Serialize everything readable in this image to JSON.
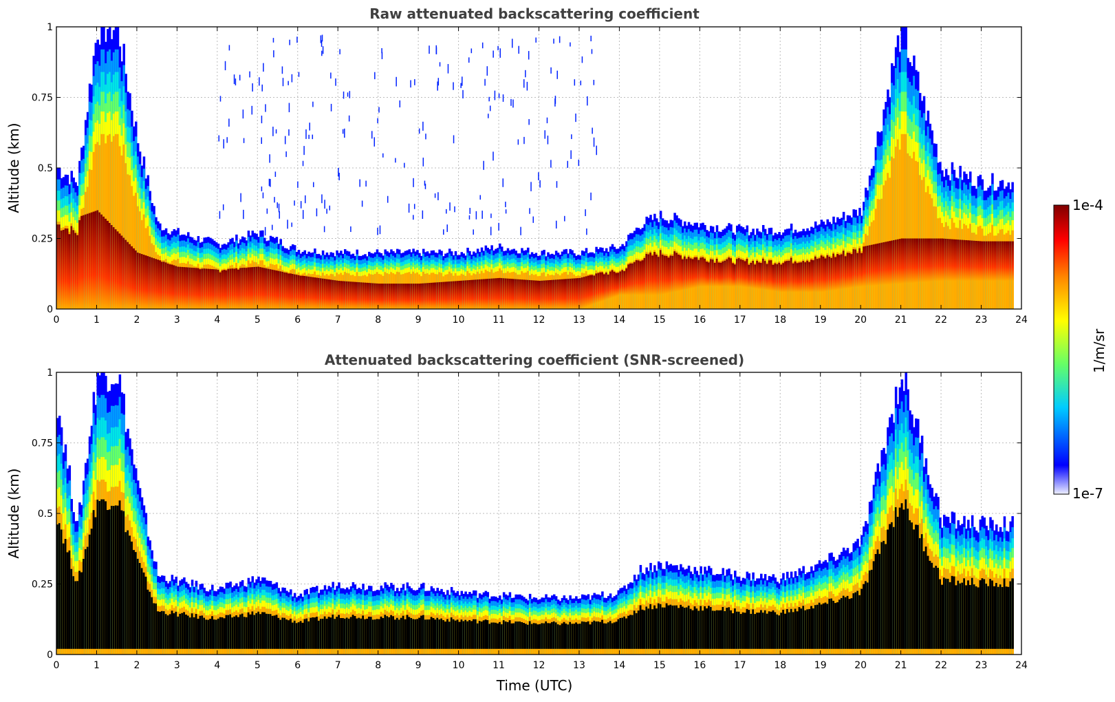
{
  "chart_data": [
    {
      "type": "heatmap",
      "title": "Raw attenuated backscattering coefficient",
      "xlabel": "",
      "ylabel": "Altitude (km)",
      "xlim": [
        0,
        24
      ],
      "ylim": [
        0,
        1
      ],
      "xticks": [
        "0",
        "1",
        "2",
        "3",
        "4",
        "5",
        "6",
        "7",
        "8",
        "9",
        "10",
        "11",
        "12",
        "13",
        "14",
        "15",
        "16",
        "17",
        "18",
        "19",
        "20",
        "21",
        "22",
        "23",
        "24"
      ],
      "yticks": [
        "0",
        "0.25",
        "0.5",
        "0.75",
        "1"
      ],
      "grid": true,
      "boundary_layer_top_km": {
        "time_utc": [
          0,
          0.5,
          1,
          1.5,
          2,
          2.5,
          3,
          4,
          5,
          6,
          7,
          8,
          9,
          10,
          11,
          12,
          13,
          14,
          14.5,
          15,
          16,
          17,
          18,
          19,
          20,
          21,
          22,
          23,
          23.8
        ],
        "altitude": [
          0.5,
          0.45,
          1.0,
          1.0,
          0.6,
          0.3,
          0.27,
          0.23,
          0.27,
          0.21,
          0.2,
          0.2,
          0.2,
          0.2,
          0.22,
          0.2,
          0.2,
          0.22,
          0.3,
          0.33,
          0.3,
          0.28,
          0.28,
          0.3,
          0.35,
          1.0,
          0.5,
          0.45,
          0.45
        ]
      },
      "high_signal_layer_km": {
        "time_utc": [
          0,
          1,
          2,
          3,
          4,
          5,
          6,
          7,
          8,
          9,
          10,
          11,
          12,
          13,
          14,
          15,
          16,
          17,
          18,
          19,
          20,
          21,
          22,
          23,
          23.8
        ],
        "bottom": [
          0,
          0,
          0,
          0,
          0,
          0,
          0,
          0,
          0,
          0,
          0,
          0,
          0,
          0,
          0.05,
          0.05,
          0.08,
          0.08,
          0.06,
          0.06,
          0.08,
          0.09,
          0.1,
          0.1,
          0.1
        ],
        "top": [
          0.3,
          0.35,
          0.2,
          0.15,
          0.14,
          0.15,
          0.12,
          0.1,
          0.09,
          0.09,
          0.1,
          0.11,
          0.1,
          0.11,
          0.15,
          0.22,
          0.2,
          0.2,
          0.2,
          0.21,
          0.22,
          0.25,
          0.25,
          0.24,
          0.24
        ]
      }
    },
    {
      "type": "heatmap",
      "title": "Attenuated backscattering coefficient (SNR-screened)",
      "xlabel": "Time (UTC)",
      "ylabel": "Altitude (km)",
      "xlim": [
        0,
        24
      ],
      "ylim": [
        0,
        1
      ],
      "xticks": [
        "0",
        "1",
        "2",
        "3",
        "4",
        "5",
        "6",
        "7",
        "8",
        "9",
        "10",
        "11",
        "12",
        "13",
        "14",
        "15",
        "16",
        "17",
        "18",
        "19",
        "20",
        "21",
        "22",
        "23",
        "24"
      ],
      "yticks": [
        "0",
        "0.25",
        "0.5",
        "0.75",
        "1"
      ],
      "grid": true,
      "boundary_layer_top_km": {
        "time_utc": [
          0,
          0.5,
          1,
          1.5,
          2,
          2.5,
          3,
          4,
          5,
          6,
          7,
          8,
          9,
          10,
          11,
          12,
          13,
          14,
          14.5,
          15,
          16,
          17,
          18,
          19,
          20,
          21,
          22,
          23,
          23.8
        ],
        "altitude": [
          0.9,
          0.45,
          1.0,
          1.0,
          0.6,
          0.28,
          0.26,
          0.23,
          0.27,
          0.21,
          0.25,
          0.24,
          0.24,
          0.22,
          0.21,
          0.2,
          0.2,
          0.22,
          0.3,
          0.32,
          0.3,
          0.28,
          0.27,
          0.32,
          0.4,
          1.0,
          0.48,
          0.46,
          0.46
        ]
      }
    }
  ],
  "colorbar": {
    "max_label": "1e-4",
    "min_label": "1e-7",
    "unit": "1/m/sr",
    "colors": [
      "#eef0ff",
      "#0000ff",
      "#00ccff",
      "#66ff66",
      "#ffff00",
      "#ff8800",
      "#ff0000",
      "#800000"
    ]
  }
}
